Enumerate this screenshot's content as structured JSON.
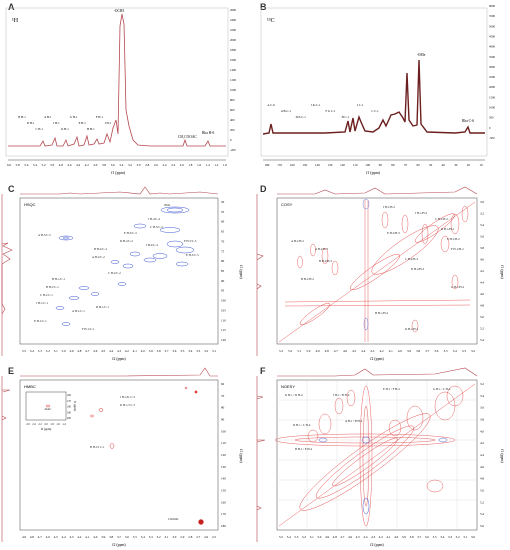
{
  "panels": {
    "A": {
      "label": "A",
      "nucleus": "1H",
      "xlabel": "f1 (ppm)",
      "xticks": [
        "6.0",
        "5.8",
        "5.6",
        "5.4",
        "5.2",
        "5.0",
        "4.8",
        "4.6",
        "4.4",
        "4.2",
        "4.0",
        "3.8",
        "3.6",
        "3.4",
        "3.2",
        "3.0",
        "2.8",
        "2.6",
        "2.4",
        "2.2",
        "2.0",
        "1.8",
        "1.6",
        "1.4",
        "1.2",
        "1.0"
      ],
      "yticks": [
        "-200",
        "0",
        "200",
        "400",
        "600",
        "800",
        "1000",
        "1200",
        "1400",
        "1600",
        "1800",
        "2000",
        "2200",
        "2400",
        "2600"
      ],
      "peak_labels": [
        "B H-1",
        "D H-1",
        "C H-1",
        "A H-1",
        "J H-1",
        "K H-1",
        "G H-1",
        "E H-1",
        "H H-1",
        "F H-1",
        "I H-1"
      ],
      "annotations": {
        "ome": "-OCH3",
        "acetate": "CH₃COOAC",
        "rha": "Rha H-6"
      }
    },
    "B": {
      "label": "B",
      "nucleus": "13C",
      "xlabel": "f1 (ppm)",
      "xticks": [
        "180",
        "170",
        "160",
        "150",
        "140",
        "130",
        "120",
        "110",
        "100",
        "90",
        "80",
        "70",
        "60",
        "50",
        "40",
        "30",
        "20",
        "10"
      ],
      "yticks": [
        "-500",
        "0",
        "500",
        "1000",
        "1500",
        "2000",
        "2500",
        "3000",
        "3500",
        "4000",
        "4500",
        "5000",
        "5500",
        "6000"
      ],
      "peak_labels": [
        "A C-6",
        "A B-C-1",
        "D E-C-1",
        "J K-C-1",
        "F G C-1",
        "H C-1",
        "I C-1",
        "C C-1"
      ],
      "annotations": {
        "ome": "-OMe",
        "rha": "Rha C-6"
      }
    },
    "C": {
      "label": "C",
      "title": "HSQC",
      "xlabel": "f2 (ppm)",
      "ylabel": "f1 (ppm)",
      "xticks": [
        "5.5",
        "5.4",
        "5.3",
        "5.2",
        "5.1",
        "5.0",
        "4.9",
        "4.8",
        "4.7",
        "4.6",
        "4.5",
        "4.4",
        "4.3",
        "4.2",
        "4.1",
        "4.0",
        "3.9",
        "3.8",
        "3.7",
        "3.6",
        "3.5",
        "3.4",
        "3.3",
        "3.2",
        "3.1"
      ],
      "yticks": [
        "50",
        "55",
        "60",
        "65",
        "70",
        "75",
        "80",
        "85",
        "90",
        "95",
        "100",
        "105",
        "110",
        "115",
        "120"
      ],
      "labels": [
        "OMe",
        "A H-5/C-5",
        "J H-4/C-4",
        "C H-3/C-3",
        "E H-3/C-3",
        "D H-2/C-2",
        "I H-4/C-4",
        "B H-4/C-4",
        "A H-2/C-2",
        "C H-2/C-2",
        "F H-5/C-5",
        "E H-5/C-5",
        "H H-1/C-1",
        "B H-1/C-1",
        "C H-1/C-1",
        "J H-1/C-1",
        "A H-1/C-1",
        "E H-1/C-1",
        "D H-1/C-1",
        "F H-1/C-1"
      ]
    },
    "D": {
      "label": "D",
      "title": "COSY",
      "xlabel": "f2 (ppm)",
      "ylabel": "f1 (ppm)",
      "xticks": [
        "5.3",
        "5.2",
        "5.1",
        "5.0",
        "4.9",
        "4.8",
        "4.7",
        "4.6",
        "4.5",
        "4.4",
        "4.3",
        "4.2",
        "4.1",
        "4.0",
        "3.9",
        "3.8",
        "3.7",
        "3.6",
        "3.5",
        "3.4",
        "3.3",
        "3.2"
      ],
      "yticks": [
        "3.0",
        "3.2",
        "3.4",
        "3.6",
        "3.8",
        "4.0",
        "4.2",
        "4.4",
        "4.6",
        "4.8",
        "5.0",
        "5.2",
        "5.4"
      ],
      "labels": [
        "A H-1/H-2",
        "B H-1/H-2",
        "I H-1/H-2",
        "J H-1/H-2",
        "C H-1/H-2",
        "D H-1/H-2",
        "E H-1/H-2",
        "F H-1/H-2",
        "G H-1/H-2",
        "H H-1/H-2",
        "K H-1/H-2",
        "A H-2/H-3",
        "B H-2/H-3",
        "C H-2/H-3",
        "D H-2/H-3",
        "E H-2/H-3"
      ]
    },
    "E": {
      "label": "E",
      "title": "HMBC",
      "xlabel": "f2 (ppm)",
      "ylabel": "f1 (ppm)",
      "xticks": [
        "4.9",
        "4.8",
        "4.7",
        "4.6",
        "4.5",
        "4.4",
        "4.3",
        "4.2",
        "4.1",
        "4.0",
        "3.9",
        "3.8",
        "3.7",
        "3.6",
        "3.5",
        "3.4",
        "3.3",
        "3.2",
        "3.1",
        "3.0",
        "2.9",
        "2.8",
        "2.7",
        "2.6",
        "2.5"
      ],
      "yticks": [
        "60",
        "70",
        "80",
        "90",
        "100",
        "110",
        "120",
        "130",
        "140",
        "150",
        "160",
        "170",
        "180"
      ],
      "inset": {
        "xticks": [
          "2.6",
          "2.4",
          "2.2",
          "2.0",
          "1.8",
          "1.6",
          "1.4"
        ],
        "yticks": [
          "160",
          "170",
          "180",
          "190",
          "200"
        ],
        "xlabel": "f2 (ppm)",
        "ylabel": "f1 (ppm)",
        "label": "-OAC"
      },
      "labels": [
        "J H-1/K C-3",
        "K H-1/J C-3",
        "B H-1/I C-1",
        "COOMe"
      ]
    },
    "F": {
      "label": "F",
      "title": "NOESY",
      "xlabel": "f2 (ppm)",
      "ylabel": "f1 (ppm)",
      "xticks": [
        "5.5",
        "5.4",
        "5.3",
        "5.2",
        "5.1",
        "5.0",
        "4.9",
        "4.8",
        "4.7",
        "4.6",
        "4.5",
        "4.4",
        "4.3",
        "4.2",
        "4.1",
        "4.0",
        "3.9",
        "3.8",
        "3.7",
        "3.6",
        "3.5",
        "3.4",
        "3.3",
        "3.2",
        "3.1",
        "3.0"
      ],
      "yticks": [
        "3.2",
        "3.4",
        "3.6",
        "3.8",
        "4.0",
        "4.2",
        "4.4",
        "4.6",
        "4.8",
        "5.0",
        "5.2",
        "5.4",
        "5.6"
      ],
      "labels": [
        "K H-1 / D H-4",
        "J H-1 / B H-4",
        "D H-1 / C H-4",
        "E H-1 / F H-4",
        "A H-1 / B H-4",
        "G H-1 / C H-4",
        "B H-1 / E H-4"
      ]
    }
  },
  "colors": {
    "spectrum": "#b5474f",
    "positive": "#e03a3a",
    "negative": "#4a5fd6",
    "frame": "#444444",
    "grid": "#cfcfcf"
  }
}
